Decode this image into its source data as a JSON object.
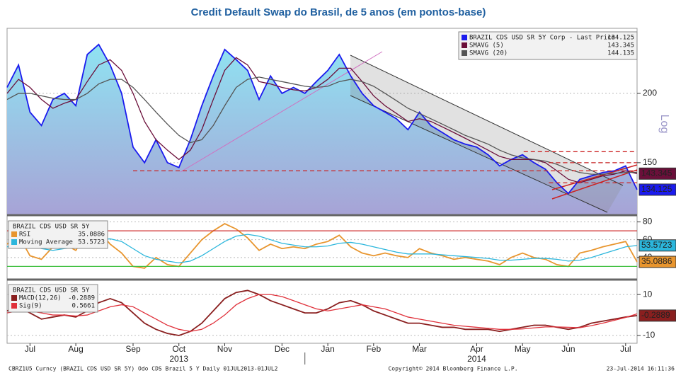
{
  "title": "Credit Default Swap do Brasil, de 5 anos (em pontos-base)",
  "footer": [
    "CBRZ1U5 Curncy (BRAZIL CDS USD SR 5Y) Odo CDS Brazil 5 Y  Daily 01JUL2013-01JUL2",
    "Copyright© 2014 Bloomberg Finance L.P.",
    "23-Jul-2014 16:11:36"
  ],
  "chart_data": [
    {
      "type": "line",
      "log_scale": true,
      "y_label": "Log",
      "ylim": [
        121,
        262
      ],
      "yticks": [
        150,
        200
      ],
      "grid": true,
      "reference_lines": [
        {
          "value": 145,
          "color": "#cc2222"
        },
        {
          "value": 157,
          "color": "#cc2222"
        },
        {
          "value": 150,
          "color": "#cc2222"
        },
        {
          "value": 138,
          "color": "#cc2222"
        }
      ],
      "dashed_reference": true,
      "series": [
        {
          "name": "BRAZIL CDS USD SR 5Y Corp - Last Price",
          "color": "#1a1aee",
          "area": true,
          "tag": true,
          "last_value": 134.125,
          "values": [
            205,
            225,
            185,
            175,
            195,
            200,
            190,
            235,
            245,
            225,
            200,
            160,
            150,
            165,
            150,
            147,
            165,
            190,
            215,
            240,
            230,
            220,
            195,
            215,
            200,
            205,
            200,
            210,
            220,
            235,
            215,
            200,
            190,
            185,
            180,
            172,
            185,
            175,
            170,
            165,
            162,
            160,
            155,
            148,
            152,
            155,
            150,
            146,
            138,
            132,
            140,
            142,
            144,
            145,
            148,
            134.125
          ]
        },
        {
          "name": "SMAVG (5)",
          "color": "#6b0f3a",
          "tag": true,
          "last_value": 143.345,
          "values": [
            200,
            212,
            205,
            195,
            188,
            192,
            195,
            210,
            225,
            230,
            220,
            200,
            178,
            165,
            158,
            152,
            158,
            172,
            195,
            220,
            232,
            225,
            210,
            208,
            205,
            203,
            202,
            205,
            212,
            222,
            222,
            210,
            198,
            190,
            184,
            178,
            180,
            178,
            174,
            170,
            166,
            162,
            158,
            154,
            152,
            152,
            152,
            150,
            145,
            140,
            138,
            140,
            142,
            143,
            145,
            143.345
          ]
        },
        {
          "name": "SMAVG (20)",
          "color": "#555555",
          "last_value": 144.135,
          "values": [
            195,
            200,
            200,
            198,
            196,
            195,
            195,
            200,
            208,
            212,
            212,
            205,
            195,
            185,
            176,
            168,
            163,
            165,
            175,
            190,
            205,
            212,
            214,
            212,
            210,
            208,
            206,
            205,
            206,
            210,
            212,
            210,
            206,
            200,
            194,
            188,
            184,
            180,
            176,
            172,
            168,
            165,
            162,
            158,
            155,
            153,
            152,
            151,
            149,
            146,
            144,
            143,
            143,
            143.5,
            144,
            144.135
          ]
        }
      ]
    },
    {
      "type": "line",
      "subtitle": "BRAZIL CDS USD SR 5Y",
      "ylim": [
        16,
        86
      ],
      "yticks": [
        80,
        60,
        40
      ],
      "grid": true,
      "reference_lines": [
        {
          "value": 70,
          "color": "#d03030"
        },
        {
          "value": 30,
          "color": "#40c040"
        }
      ],
      "dashed_reference": false,
      "series": [
        {
          "name": "RSI",
          "color": "#e8952e",
          "tag": true,
          "last_value": 35.0886,
          "values": [
            55,
            65,
            42,
            38,
            52,
            55,
            48,
            68,
            70,
            55,
            45,
            30,
            28,
            40,
            32,
            30,
            45,
            60,
            70,
            78,
            72,
            62,
            48,
            55,
            50,
            52,
            50,
            55,
            58,
            65,
            52,
            45,
            42,
            45,
            42,
            40,
            50,
            45,
            42,
            38,
            40,
            38,
            36,
            32,
            40,
            45,
            40,
            38,
            32,
            30,
            45,
            48,
            52,
            55,
            58,
            35.0886
          ]
        },
        {
          "name": "Moving Average",
          "color": "#2bb6dc",
          "tag": true,
          "last_value": 53.5723,
          "values": [
            52,
            55,
            54,
            50,
            48,
            50,
            51,
            55,
            60,
            61,
            58,
            50,
            42,
            38,
            36,
            34,
            36,
            42,
            50,
            58,
            64,
            66,
            64,
            60,
            56,
            54,
            52,
            52,
            53,
            56,
            57,
            55,
            52,
            49,
            46,
            44,
            44,
            44,
            43,
            42,
            41,
            40,
            39,
            37,
            37,
            38,
            39,
            39,
            38,
            36,
            37,
            40,
            44,
            48,
            52,
            53.5723
          ]
        }
      ]
    },
    {
      "type": "line",
      "subtitle": "BRAZIL CDS USD SR 5Y",
      "ylim": [
        -13.8,
        16.6
      ],
      "yticks": [
        10,
        -10
      ],
      "grid": true,
      "categories": [
        null,
        null,
        "Jul",
        null,
        null,
        null,
        "Aug",
        null,
        null,
        null,
        null,
        "Sep",
        null,
        null,
        null,
        "Oct",
        null,
        null,
        null,
        "Nov",
        null,
        null,
        null,
        null,
        "Dec",
        null,
        null,
        null,
        "Jan",
        null,
        null,
        null,
        "Feb",
        null,
        null,
        null,
        "Mar",
        null,
        null,
        null,
        null,
        "Apr",
        null,
        null,
        null,
        "May",
        null,
        null,
        null,
        "Jun",
        null,
        null,
        null,
        null,
        "Jul",
        null
      ],
      "year_labels": [
        "2013",
        "2014"
      ],
      "series": [
        {
          "name": "MACD(12,26)",
          "color": "#8a1f1f",
          "tag": true,
          "last_value": -0.2889,
          "values": [
            2,
            4,
            1,
            -2,
            -1,
            0,
            -1,
            2,
            6,
            8,
            6,
            1,
            -4,
            -7,
            -9,
            -10,
            -8,
            -4,
            2,
            8,
            11,
            12,
            10,
            7,
            5,
            3,
            1,
            1,
            3,
            6,
            7,
            5,
            2,
            0,
            -2,
            -4,
            -4,
            -5,
            -6,
            -6,
            -7,
            -7,
            -7,
            -8,
            -7,
            -6,
            -5,
            -5,
            -6,
            -7,
            -6,
            -4,
            -3,
            -2,
            -1,
            -0.2889
          ]
        },
        {
          "name": "Sig(9)",
          "color": "#e0303a",
          "last_value": 0.5661,
          "values": [
            1,
            2,
            2,
            1,
            0,
            0,
            -0.5,
            0,
            2,
            4,
            5,
            4,
            1,
            -2,
            -5,
            -7,
            -8,
            -7,
            -4,
            0,
            5,
            8,
            10,
            10,
            9,
            7,
            5,
            3,
            2,
            3,
            4,
            5,
            4,
            3,
            1,
            -1,
            -2,
            -3,
            -4,
            -5,
            -5.5,
            -6,
            -6.5,
            -7,
            -7,
            -6.8,
            -6.3,
            -5.8,
            -5.8,
            -6,
            -6.2,
            -5.2,
            -4,
            -2.6,
            -1.2,
            0.5661
          ]
        }
      ]
    }
  ]
}
